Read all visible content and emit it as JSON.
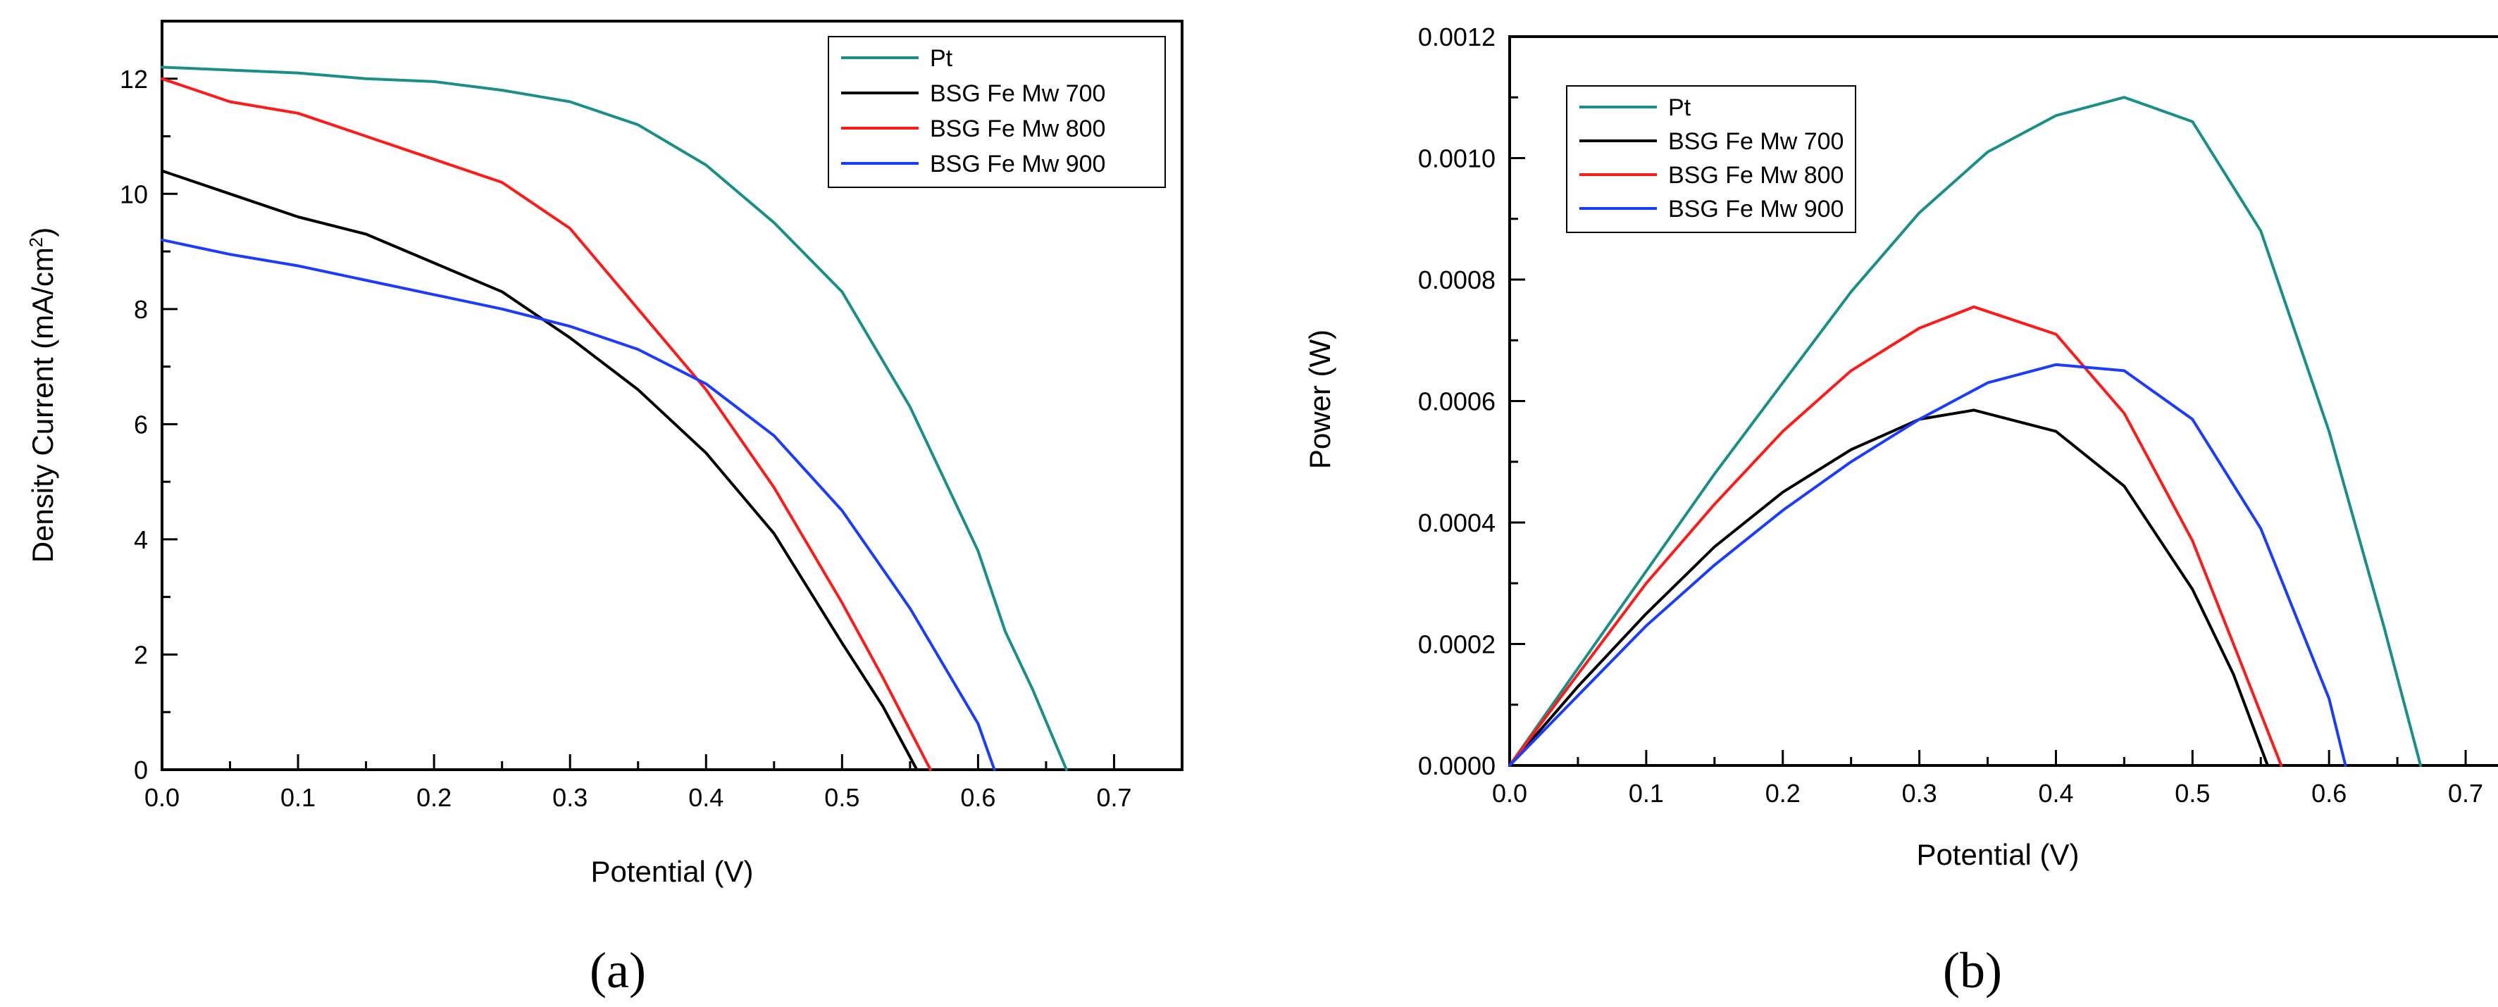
{
  "chart_data": [
    {
      "type": "line",
      "panel_label": "(a)",
      "title": "",
      "xlabel": "Potential (V)",
      "ylabel": "Density Current (mA/cm²)",
      "ylabel_main": "Density Current (mA/cm",
      "ylabel_sup": "2",
      "ylabel_end": ")",
      "xlim": [
        0,
        0.75
      ],
      "ylim": [
        0,
        13
      ],
      "xticks": [
        0.0,
        0.1,
        0.2,
        0.3,
        0.4,
        0.5,
        0.6,
        0.7
      ],
      "xtick_labels": [
        "0.0",
        "0.1",
        "0.2",
        "0.3",
        "0.4",
        "0.5",
        "0.6",
        "0.7"
      ],
      "yticks": [
        0,
        2,
        4,
        6,
        8,
        10,
        12
      ],
      "ytick_labels": [
        "0",
        "2",
        "4",
        "6",
        "8",
        "10",
        "12"
      ],
      "legend_position": "top-right",
      "series": [
        {
          "name": "Pt",
          "color": "#1a8f87",
          "x": [
            0,
            0.05,
            0.1,
            0.15,
            0.2,
            0.25,
            0.3,
            0.35,
            0.4,
            0.45,
            0.5,
            0.55,
            0.6,
            0.62,
            0.64,
            0.665
          ],
          "y": [
            12.2,
            12.15,
            12.1,
            12.0,
            11.95,
            11.8,
            11.6,
            11.2,
            10.5,
            9.5,
            8.3,
            6.3,
            3.8,
            2.4,
            1.4,
            0
          ]
        },
        {
          "name": "BSG Fe Mw 700",
          "color": "#000000",
          "x": [
            0,
            0.05,
            0.1,
            0.15,
            0.2,
            0.25,
            0.3,
            0.35,
            0.4,
            0.45,
            0.5,
            0.53,
            0.555
          ],
          "y": [
            10.4,
            10.0,
            9.6,
            9.3,
            8.8,
            8.3,
            7.5,
            6.6,
            5.5,
            4.1,
            2.2,
            1.1,
            0
          ]
        },
        {
          "name": "BSG Fe Mw 800",
          "color": "#ff1a1a",
          "x": [
            0,
            0.05,
            0.1,
            0.15,
            0.2,
            0.25,
            0.3,
            0.35,
            0.4,
            0.45,
            0.5,
            0.53,
            0.565
          ],
          "y": [
            12.0,
            11.6,
            11.4,
            11.0,
            10.6,
            10.2,
            9.4,
            8.0,
            6.6,
            4.9,
            2.9,
            1.6,
            0
          ]
        },
        {
          "name": "BSG Fe Mw 900",
          "color": "#1a3cff",
          "x": [
            0,
            0.05,
            0.1,
            0.15,
            0.2,
            0.25,
            0.3,
            0.35,
            0.4,
            0.45,
            0.5,
            0.55,
            0.6,
            0.612
          ],
          "y": [
            9.2,
            8.95,
            8.75,
            8.5,
            8.25,
            8.0,
            7.7,
            7.3,
            6.7,
            5.8,
            4.5,
            2.8,
            0.8,
            0
          ]
        }
      ]
    },
    {
      "type": "line",
      "panel_label": "(b)",
      "title": "",
      "xlabel": "Potential (V)",
      "ylabel": "Power (W)",
      "xlim": [
        0,
        0.75
      ],
      "ylim": [
        0,
        0.0012
      ],
      "xticks": [
        0.0,
        0.1,
        0.2,
        0.3,
        0.4,
        0.5,
        0.6,
        0.7
      ],
      "xtick_labels": [
        "0.0",
        "0.1",
        "0.2",
        "0.3",
        "0.4",
        "0.5",
        "0.6",
        "0.7"
      ],
      "yticks": [
        0,
        0.0002,
        0.0004,
        0.0006,
        0.0008,
        0.001,
        0.0012
      ],
      "ytick_labels": [
        "0.0000",
        "0.0002",
        "0.0004",
        "0.0006",
        "0.0008",
        "0.0010",
        "0.0012"
      ],
      "legend_position": "top-left",
      "series": [
        {
          "name": "Pt",
          "color": "#1a8f87",
          "x": [
            0,
            0.05,
            0.1,
            0.15,
            0.2,
            0.25,
            0.3,
            0.35,
            0.4,
            0.45,
            0.5,
            0.55,
            0.6,
            0.64,
            0.667
          ],
          "y": [
            0,
            0.00016,
            0.00032,
            0.00048,
            0.00063,
            0.00078,
            0.00091,
            0.00101,
            0.00107,
            0.0011,
            0.00106,
            0.00088,
            0.00055,
            0.00023,
            0
          ]
        },
        {
          "name": "BSG Fe Mw 700",
          "color": "#000000",
          "x": [
            0,
            0.05,
            0.1,
            0.15,
            0.2,
            0.25,
            0.3,
            0.34,
            0.4,
            0.45,
            0.5,
            0.53,
            0.555
          ],
          "y": [
            0,
            0.00013,
            0.00025,
            0.00036,
            0.00045,
            0.00052,
            0.00057,
            0.000585,
            0.00055,
            0.00046,
            0.00029,
            0.00015,
            0
          ]
        },
        {
          "name": "BSG Fe Mw 800",
          "color": "#ff1a1a",
          "x": [
            0,
            0.05,
            0.1,
            0.15,
            0.2,
            0.25,
            0.3,
            0.34,
            0.4,
            0.45,
            0.5,
            0.53,
            0.565
          ],
          "y": [
            0,
            0.00015,
            0.0003,
            0.00043,
            0.00055,
            0.00065,
            0.00072,
            0.000755,
            0.00071,
            0.00058,
            0.00037,
            0.0002,
            0
          ]
        },
        {
          "name": "BSG Fe Mw 900",
          "color": "#1a3cff",
          "x": [
            0,
            0.05,
            0.1,
            0.15,
            0.2,
            0.25,
            0.3,
            0.35,
            0.4,
            0.45,
            0.5,
            0.55,
            0.6,
            0.612
          ],
          "y": [
            0,
            0.000115,
            0.00023,
            0.00033,
            0.00042,
            0.0005,
            0.00057,
            0.00063,
            0.00066,
            0.00065,
            0.00057,
            0.00039,
            0.00011,
            0
          ]
        }
      ]
    }
  ]
}
